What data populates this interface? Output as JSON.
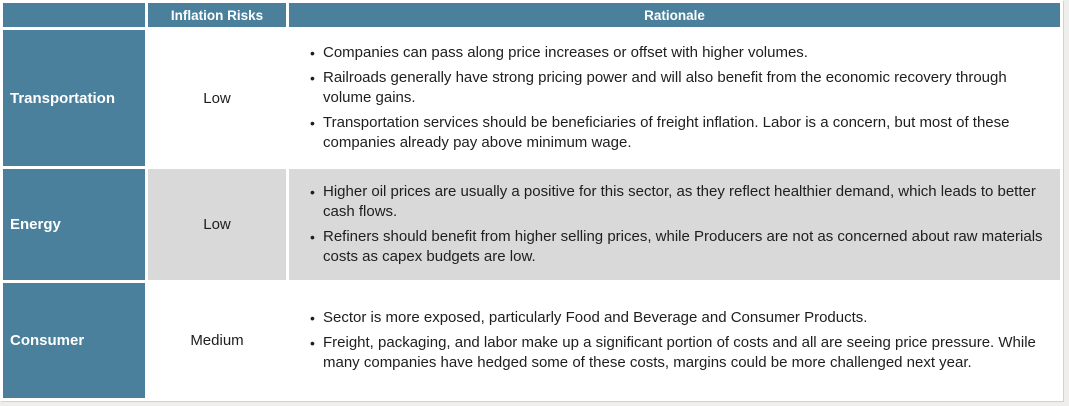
{
  "table": {
    "title_semantic": "Sector inflation risk assessment table",
    "header": {
      "sector_column_label": "",
      "risk_column_label": "Inflation Risks",
      "rationale_column_label": "Rationale"
    },
    "rows": [
      {
        "sector": "Transportation",
        "risk": "Low",
        "shaded": false,
        "bullets": [
          "Companies can pass along price increases or offset with higher volumes.",
          "Railroads generally have strong pricing power and will also benefit from the economic recovery through volume gains.",
          "Transportation services should be beneficiaries of freight inflation. Labor is a concern, but most of these companies already pay above minimum wage."
        ]
      },
      {
        "sector": "Energy",
        "risk": "Low",
        "shaded": true,
        "bullets": [
          "Higher oil prices are usually a positive for this sector, as they reflect healthier demand, which leads to better cash flows.",
          "Refiners should benefit from higher selling prices, while Producers are not as concerned about raw materials costs as capex budgets are low."
        ]
      },
      {
        "sector": "Consumer",
        "risk": "Medium",
        "shaded": false,
        "bullets": [
          "Sector is more exposed, particularly Food and Beverage and Consumer Products.",
          "Freight, packaging, and labor make up a significant portion of costs and all are seeing price pressure. While many companies have hedged some of these costs, margins could be more challenged next year."
        ]
      }
    ],
    "colors": {
      "header_bg": "#4A809B",
      "sector_bg": "#4A809B",
      "shaded_row_bg": "#d9d9d9",
      "body_text": "#1e1e1e",
      "header_text": "#ffffff",
      "page_bg": "#efeeec"
    }
  }
}
